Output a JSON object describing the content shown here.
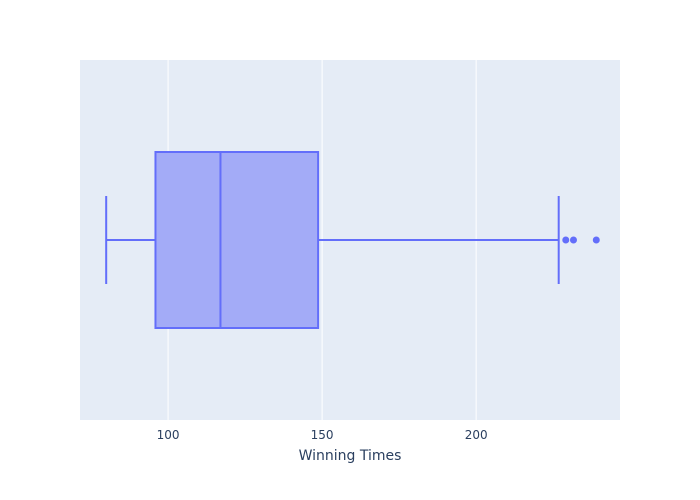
{
  "chart_data": {
    "type": "box",
    "orientation": "horizontal",
    "xlabel": "Winning Times",
    "ylabel": "",
    "title": "",
    "xlim": [
      71.4,
      246.7
    ],
    "xticks": [
      100,
      150,
      200
    ],
    "grid": true,
    "legend": "none",
    "box": {
      "min": 79.9,
      "q1": 95.9,
      "median": 117.0,
      "q3": 148.7,
      "upper_fence": 226.8,
      "outliers": [
        229.1,
        231.6,
        239.0
      ]
    },
    "colors": {
      "plot_bg": "#e5ecf6",
      "grid": "#ffffff",
      "line": "#636efa",
      "fill": "#a3abf7",
      "text": "#2a3f5f"
    }
  }
}
